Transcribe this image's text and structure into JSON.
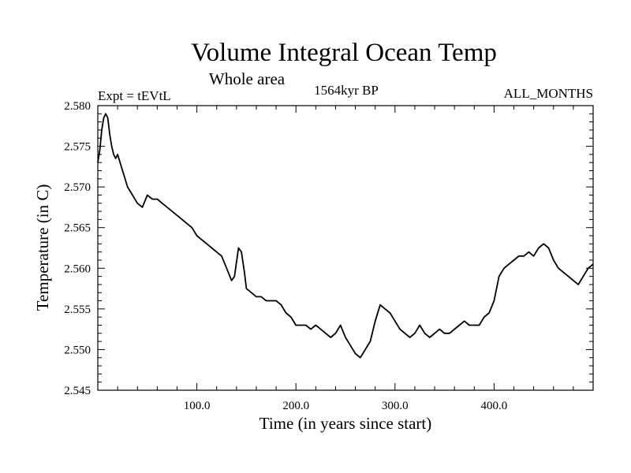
{
  "chart_data": {
    "type": "line",
    "title": "Volume Integral Ocean Temp",
    "subtitle": "Whole area",
    "annotations": {
      "left": "Expt = tEVtL",
      "center": "1564kyr BP",
      "right": "ALL_MONTHS"
    },
    "xlabel": "Time (in years since start)",
    "ylabel": "Temperature (in C)",
    "xlim": [
      0,
      500
    ],
    "ylim": [
      2.545,
      2.58
    ],
    "x_ticks": [
      100,
      200,
      300,
      400
    ],
    "x_tick_labels": [
      "100.0",
      "200.0",
      "300.0",
      "400.0"
    ],
    "y_ticks": [
      2.545,
      2.55,
      2.555,
      2.56,
      2.565,
      2.57,
      2.575,
      2.58
    ],
    "y_tick_labels": [
      "2.545",
      "2.550",
      "2.555",
      "2.560",
      "2.565",
      "2.570",
      "2.575",
      "2.580"
    ],
    "grid": false,
    "series": [
      {
        "name": "Volume integral ocean temperature",
        "color": "#000000",
        "x": [
          0,
          2,
          4,
          6,
          8,
          10,
          12,
          14,
          16,
          18,
          20,
          25,
          30,
          35,
          40,
          45,
          50,
          55,
          60,
          65,
          70,
          75,
          80,
          85,
          90,
          95,
          100,
          105,
          110,
          115,
          120,
          125,
          130,
          135,
          138,
          142,
          145,
          148,
          150,
          155,
          160,
          165,
          170,
          175,
          180,
          185,
          190,
          195,
          200,
          205,
          210,
          215,
          220,
          225,
          230,
          235,
          240,
          245,
          250,
          255,
          260,
          265,
          270,
          275,
          280,
          285,
          290,
          295,
          300,
          305,
          310,
          315,
          320,
          325,
          330,
          335,
          340,
          345,
          350,
          355,
          360,
          365,
          370,
          375,
          380,
          385,
          390,
          395,
          400,
          405,
          410,
          415,
          420,
          425,
          430,
          435,
          440,
          445,
          450,
          455,
          460,
          465,
          470,
          475,
          480,
          485,
          490,
          495,
          500
        ],
        "values": [
          2.573,
          2.5745,
          2.577,
          2.5785,
          2.579,
          2.5785,
          2.5765,
          2.575,
          2.574,
          2.5735,
          2.574,
          2.572,
          2.57,
          2.569,
          2.568,
          2.5675,
          2.569,
          2.5685,
          2.5685,
          2.568,
          2.5675,
          2.567,
          2.5665,
          2.566,
          2.5655,
          2.565,
          2.564,
          2.5635,
          2.563,
          2.5625,
          2.562,
          2.5615,
          2.56,
          2.5585,
          2.559,
          2.5625,
          2.562,
          2.5595,
          2.5575,
          2.557,
          2.5565,
          2.5565,
          2.556,
          2.556,
          2.556,
          2.5555,
          2.5545,
          2.554,
          2.553,
          2.553,
          2.553,
          2.5525,
          2.553,
          2.5525,
          2.552,
          2.5515,
          2.552,
          2.553,
          2.5515,
          2.5505,
          2.5495,
          2.549,
          2.55,
          2.551,
          2.5535,
          2.5555,
          2.555,
          2.5545,
          2.5535,
          2.5525,
          2.552,
          2.5515,
          2.552,
          2.553,
          2.552,
          2.5515,
          2.552,
          2.5525,
          2.552,
          2.552,
          2.5525,
          2.553,
          2.5535,
          2.553,
          2.553,
          2.553,
          2.554,
          2.5545,
          2.556,
          2.559,
          2.56,
          2.5605,
          2.561,
          2.5615,
          2.5615,
          2.562,
          2.5615,
          2.5625,
          2.563,
          2.5625,
          2.561,
          2.56,
          2.5595,
          2.559,
          2.5585,
          2.558,
          2.559,
          2.56,
          2.5605
        ]
      }
    ]
  }
}
